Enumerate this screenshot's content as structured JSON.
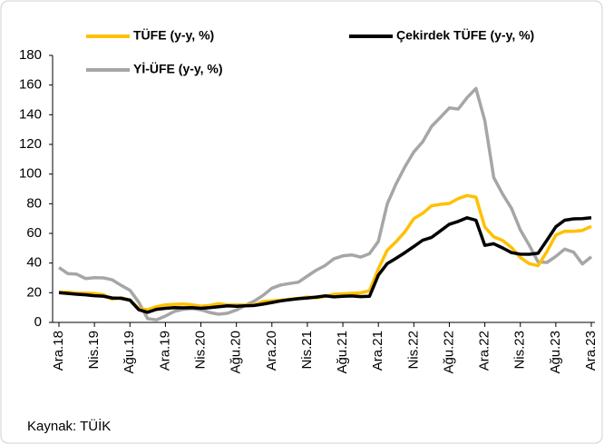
{
  "chart_data": {
    "type": "line",
    "source": "Kaynak: TÜİK",
    "categories": [
      "Ara.18",
      null,
      null,
      null,
      "Nis.19",
      null,
      null,
      null,
      "Ağu.19",
      null,
      null,
      null,
      "Ara.19",
      null,
      null,
      null,
      "Nis.20",
      null,
      null,
      null,
      "Ağu.20",
      null,
      null,
      null,
      "Ara.20",
      null,
      null,
      null,
      "Nis.21",
      null,
      null,
      null,
      "Ağu.21",
      null,
      null,
      null,
      "Ara.21",
      null,
      null,
      null,
      "Nis.22",
      null,
      null,
      null,
      "Ağu.22",
      null,
      null,
      null,
      "Ara.22",
      null,
      null,
      null,
      "Nis.23",
      null,
      null,
      null,
      "Ağu.23",
      null,
      null,
      null,
      "Ara.23"
    ],
    "series": [
      {
        "name": "TÜFE (y-y, %)",
        "color": "#FFC000",
        "values": [
          20.3,
          20.4,
          19.7,
          19.7,
          19.5,
          18.7,
          15.7,
          16.7,
          15.0,
          9.3,
          8.6,
          10.6,
          11.8,
          12.2,
          12.4,
          11.9,
          10.9,
          11.4,
          12.6,
          11.8,
          11.8,
          11.8,
          11.9,
          14.0,
          14.6,
          15.0,
          15.6,
          16.2,
          17.1,
          16.6,
          17.5,
          19.0,
          19.3,
          19.6,
          19.9,
          21.3,
          36.1,
          48.7,
          54.4,
          61.1,
          70.0,
          73.5,
          78.6,
          79.6,
          80.2,
          83.5,
          85.5,
          84.4,
          64.3,
          57.7,
          55.2,
          50.5,
          43.7,
          39.6,
          38.2,
          47.8,
          58.9,
          61.5,
          61.4,
          62.0,
          64.8
        ]
      },
      {
        "name": "Çekirdek TÜFE (y-y, %)",
        "color": "#000000",
        "values": [
          20.0,
          19.5,
          19.0,
          18.6,
          18.0,
          17.7,
          16.5,
          16.2,
          15.0,
          8.5,
          6.8,
          8.8,
          9.5,
          9.9,
          9.8,
          10.0,
          9.5,
          9.9,
          10.6,
          11.2,
          10.9,
          11.2,
          11.4,
          12.3,
          13.4,
          14.5,
          15.3,
          16.0,
          16.5,
          17.1,
          17.9,
          17.2,
          17.6,
          17.8,
          17.4,
          17.6,
          31.9,
          39.7,
          43.2,
          47.1,
          51.2,
          55.4,
          57.3,
          61.7,
          66.2,
          68.1,
          70.5,
          68.9,
          51.9,
          53.0,
          50.2,
          47.0,
          46.0,
          45.9,
          46.6,
          55.4,
          64.5,
          68.9,
          69.8,
          70.0,
          70.5
        ]
      },
      {
        "name": "Yİ-ÜFE (y-y, %)",
        "color": "#A6A6A6",
        "values": [
          37.0,
          32.9,
          32.5,
          29.6,
          30.1,
          30.0,
          28.7,
          25.0,
          21.7,
          13.5,
          2.5,
          1.7,
          4.3,
          7.4,
          8.8,
          9.3,
          8.5,
          6.7,
          5.5,
          6.2,
          8.3,
          11.5,
          14.3,
          18.2,
          23.1,
          25.2,
          26.2,
          27.1,
          31.2,
          35.2,
          38.3,
          42.9,
          44.9,
          45.5,
          44.0,
          46.3,
          54.6,
          79.9,
          93.5,
          105.0,
          114.9,
          121.8,
          132.2,
          138.3,
          144.6,
          143.8,
          151.5,
          157.7,
          136.0,
          97.7,
          86.5,
          76.9,
          62.4,
          52.1,
          40.8,
          40.4,
          44.5,
          49.4,
          47.4,
          39.4,
          44.2
        ]
      }
    ],
    "ylim": [
      0,
      180
    ],
    "yticks": [
      0,
      20,
      40,
      60,
      80,
      100,
      120,
      140,
      160,
      180
    ],
    "grid": false
  }
}
